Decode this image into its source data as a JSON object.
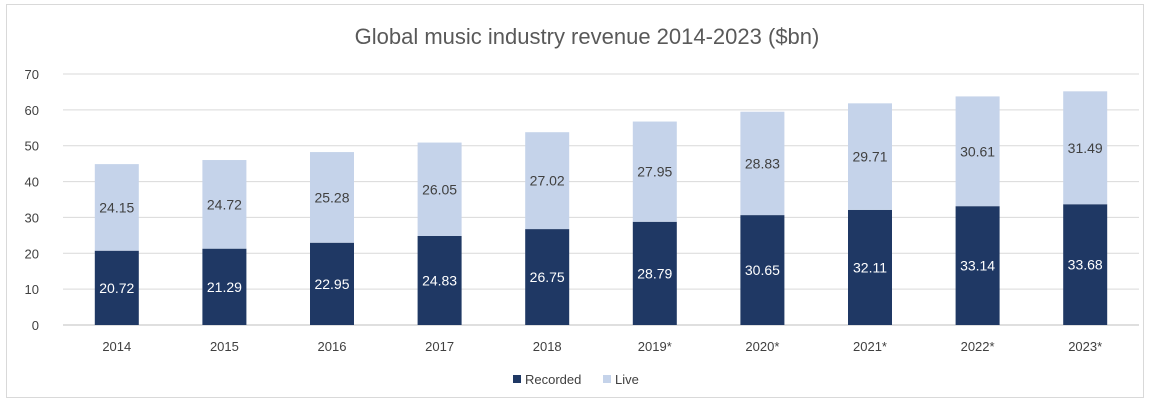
{
  "chart_data": {
    "type": "bar",
    "stacked": true,
    "title": "Global music industry revenue 2014-2023 ($bn)",
    "categories": [
      "2014",
      "2015",
      "2016",
      "2017",
      "2018",
      "2019*",
      "2020*",
      "2021*",
      "2022*",
      "2023*"
    ],
    "series": [
      {
        "name": "Recorded",
        "color": "#1f3864",
        "label_color": "#ffffff",
        "values": [
          20.72,
          21.29,
          22.95,
          24.83,
          26.75,
          28.79,
          30.65,
          32.11,
          33.14,
          33.68
        ]
      },
      {
        "name": "Live",
        "color": "#c5d3ea",
        "label_color": "#404040",
        "values": [
          24.15,
          24.72,
          25.28,
          26.05,
          27.02,
          27.95,
          28.83,
          29.71,
          30.61,
          31.49
        ]
      }
    ],
    "ylim": [
      0,
      70
    ],
    "yticks": [
      0,
      10,
      20,
      30,
      40,
      50,
      60,
      70
    ],
    "grid": true,
    "gridline_color": "#d9d9d9",
    "legend_position": "bottom"
  }
}
